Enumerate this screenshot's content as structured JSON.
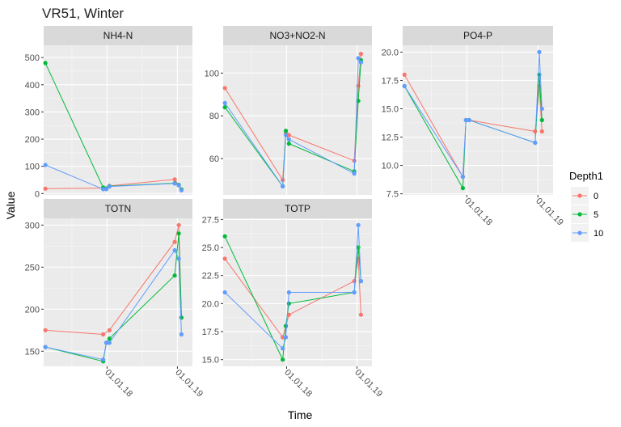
{
  "chart_title": "VR51, Winter",
  "chart_data": {
    "type": "line",
    "title": "VR51, Winter",
    "xlabel": "Time",
    "ylabel": "Value",
    "legend": {
      "title": "Depth1",
      "position": "right",
      "entries": [
        {
          "label": "0",
          "color": "#F8766D"
        },
        {
          "label": "5",
          "color": "#00BA38"
        },
        {
          "label": "10",
          "color": "#619CFF"
        }
      ]
    },
    "x_axis": {
      "type": "date",
      "range": [
        "2017-02-06",
        "2019-03-20"
      ],
      "ticks": [
        {
          "value": "2018-01-01",
          "label": "01.01.18"
        },
        {
          "value": "2019-01-01",
          "label": "01.01.19"
        }
      ]
    },
    "grid": true,
    "panels": [
      {
        "name": "NH4-N",
        "ylim": [
          -5,
          545
        ],
        "yticks": [
          0,
          100,
          200,
          300,
          400,
          500
        ],
        "series": [
          {
            "name": "0",
            "points": [
              [
                "2017-02-15",
                18
              ],
              [
                "2017-12-12",
                20
              ],
              [
                "2018-01-13",
                28
              ],
              [
                "2018-12-18",
                52
              ],
              [
                "2019-01-08",
                30
              ],
              [
                "2019-01-22",
                15
              ]
            ]
          },
          {
            "name": "5",
            "points": [
              [
                "2017-02-15",
                480
              ],
              [
                "2017-12-12",
                22
              ],
              [
                "2018-01-13",
                27
              ],
              [
                "2018-12-18",
                38
              ],
              [
                "2019-01-08",
                32
              ],
              [
                "2019-01-22",
                15
              ]
            ]
          },
          {
            "name": "10",
            "points": [
              [
                "2017-02-15",
                105
              ],
              [
                "2017-12-12",
                16
              ],
              [
                "2017-12-28",
                16
              ],
              [
                "2018-01-13",
                26
              ],
              [
                "2018-12-18",
                37
              ],
              [
                "2019-01-08",
                30
              ],
              [
                "2019-01-22",
                12
              ]
            ]
          }
        ]
      },
      {
        "name": "NO3+NO2-N",
        "ylim": [
          43,
          113
        ],
        "yticks": [
          60,
          80,
          100
        ],
        "series": [
          {
            "name": "0",
            "points": [
              [
                "2017-02-15",
                93
              ],
              [
                "2017-12-12",
                50
              ],
              [
                "2017-12-28",
                72
              ],
              [
                "2018-01-13",
                71
              ],
              [
                "2018-12-18",
                59
              ],
              [
                "2019-01-08",
                94
              ],
              [
                "2019-01-22",
                109
              ]
            ]
          },
          {
            "name": "5",
            "points": [
              [
                "2017-02-15",
                84
              ],
              [
                "2017-12-12",
                47
              ],
              [
                "2017-12-28",
                73
              ],
              [
                "2018-01-13",
                67
              ],
              [
                "2018-12-18",
                54
              ],
              [
                "2019-01-08",
                87
              ],
              [
                "2019-01-22",
                106
              ]
            ]
          },
          {
            "name": "10",
            "points": [
              [
                "2017-02-15",
                86
              ],
              [
                "2017-12-12",
                47
              ],
              [
                "2017-12-28",
                71
              ],
              [
                "2018-01-13",
                69
              ],
              [
                "2018-12-18",
                53
              ],
              [
                "2019-01-08",
                107
              ],
              [
                "2019-01-22",
                105
              ]
            ]
          }
        ]
      },
      {
        "name": "PO4-P",
        "ylim": [
          7.4,
          20.6
        ],
        "yticks": [
          7.5,
          10.0,
          12.5,
          15.0,
          17.5,
          20.0
        ],
        "series": [
          {
            "name": "0",
            "points": [
              [
                "2017-02-15",
                18
              ],
              [
                "2017-12-12",
                9
              ],
              [
                "2017-12-28",
                14
              ],
              [
                "2018-01-13",
                14
              ],
              [
                "2018-12-18",
                13
              ],
              [
                "2019-01-08",
                17
              ],
              [
                "2019-01-22",
                13
              ]
            ]
          },
          {
            "name": "5",
            "points": [
              [
                "2017-02-15",
                17
              ],
              [
                "2017-12-12",
                8
              ],
              [
                "2017-12-28",
                14
              ],
              [
                "2018-01-13",
                14
              ],
              [
                "2018-12-18",
                12
              ],
              [
                "2019-01-08",
                18
              ],
              [
                "2019-01-22",
                14
              ]
            ]
          },
          {
            "name": "10",
            "points": [
              [
                "2017-02-15",
                17
              ],
              [
                "2017-12-12",
                9
              ],
              [
                "2017-12-28",
                14
              ],
              [
                "2018-01-13",
                14
              ],
              [
                "2018-12-18",
                12
              ],
              [
                "2019-01-08",
                20
              ],
              [
                "2019-01-22",
                15
              ]
            ]
          }
        ]
      },
      {
        "name": "TOTN",
        "ylim": [
          132,
          308
        ],
        "yticks": [
          150,
          200,
          250,
          300
        ],
        "series": [
          {
            "name": "0",
            "points": [
              [
                "2017-02-15",
                175
              ],
              [
                "2017-12-12",
                170
              ],
              [
                "2018-01-13",
                175
              ],
              [
                "2018-12-18",
                280
              ],
              [
                "2019-01-08",
                300
              ],
              [
                "2019-01-22",
                190
              ]
            ]
          },
          {
            "name": "5",
            "points": [
              [
                "2017-02-15",
                155
              ],
              [
                "2017-12-12",
                138
              ],
              [
                "2017-12-28",
                160
              ],
              [
                "2018-01-13",
                165
              ],
              [
                "2018-12-18",
                240
              ],
              [
                "2019-01-08",
                290
              ],
              [
                "2019-01-22",
                190
              ]
            ]
          },
          {
            "name": "10",
            "points": [
              [
                "2017-02-15",
                155
              ],
              [
                "2017-12-12",
                140
              ],
              [
                "2017-12-28",
                160
              ],
              [
                "2018-01-13",
                160
              ],
              [
                "2018-12-18",
                270
              ],
              [
                "2019-01-08",
                260
              ],
              [
                "2019-01-22",
                170
              ]
            ]
          }
        ]
      },
      {
        "name": "TOTP",
        "ylim": [
          14.4,
          27.6
        ],
        "yticks": [
          15.0,
          17.5,
          20.0,
          22.5,
          25.0,
          27.5
        ],
        "series": [
          {
            "name": "0",
            "points": [
              [
                "2017-02-15",
                24
              ],
              [
                "2017-12-12",
                17
              ],
              [
                "2017-12-28",
                18
              ],
              [
                "2018-01-13",
                19
              ],
              [
                "2018-12-18",
                22
              ],
              [
                "2019-01-08",
                24
              ],
              [
                "2019-01-22",
                19
              ]
            ]
          },
          {
            "name": "5",
            "points": [
              [
                "2017-02-15",
                26
              ],
              [
                "2017-12-12",
                15
              ],
              [
                "2017-12-28",
                18
              ],
              [
                "2018-01-13",
                20
              ],
              [
                "2018-12-18",
                21
              ],
              [
                "2019-01-08",
                25
              ],
              [
                "2019-01-22",
                22
              ]
            ]
          },
          {
            "name": "10",
            "points": [
              [
                "2017-02-15",
                21
              ],
              [
                "2017-12-12",
                16
              ],
              [
                "2017-12-28",
                17
              ],
              [
                "2018-01-13",
                21
              ],
              [
                "2018-12-18",
                21
              ],
              [
                "2019-01-08",
                27
              ],
              [
                "2019-01-22",
                22
              ]
            ]
          }
        ]
      }
    ]
  }
}
